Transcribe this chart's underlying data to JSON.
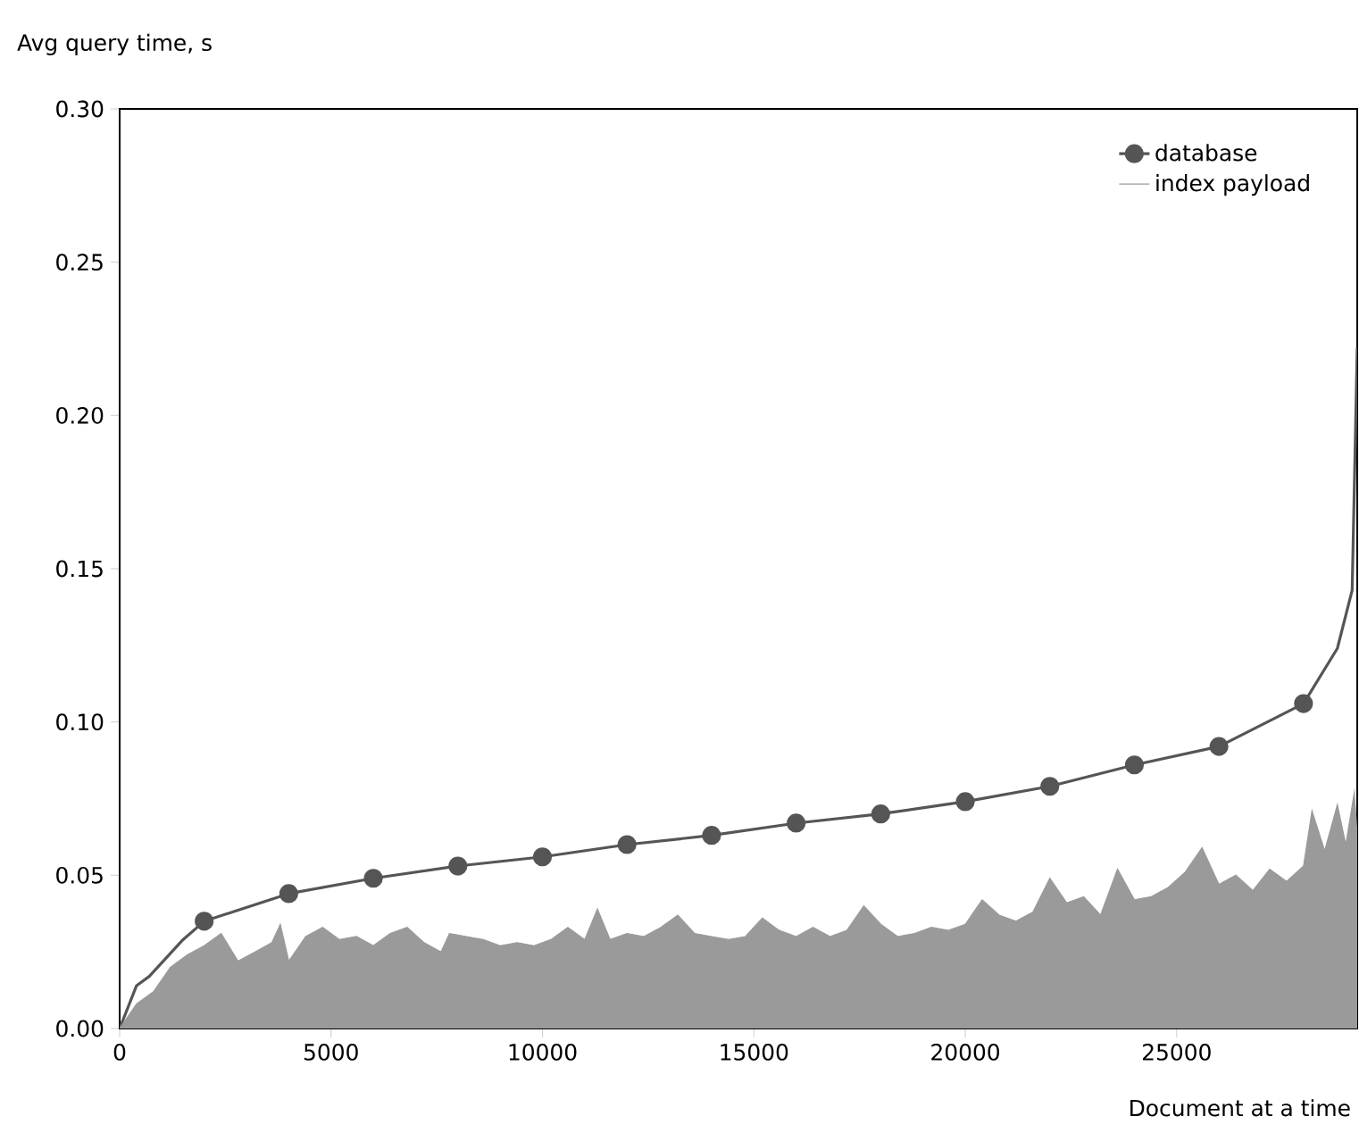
{
  "chart_data": {
    "type": "line",
    "xlabel": "Document at a time",
    "ylabel": "Avg query time, s",
    "xlim": [
      0,
      29270
    ],
    "ylim": [
      0,
      0.3
    ],
    "xticks": [
      0,
      5000,
      10000,
      15000,
      20000,
      25000
    ],
    "yticks": [
      {
        "value": 0,
        "label": "0.00"
      },
      {
        "value": 0.05,
        "label": "0.05"
      },
      {
        "value": 0.1,
        "label": "0.10"
      },
      {
        "value": 0.15,
        "label": "0.15"
      },
      {
        "value": 0.2,
        "label": "0.20"
      },
      {
        "value": 0.25,
        "label": "0.25"
      },
      {
        "value": 0.3,
        "label": "0.30"
      }
    ],
    "grid": false,
    "legend": "top right",
    "series": [
      {
        "name": "database",
        "color": "#555555",
        "marker": "circle",
        "x": [
          2000,
          4000,
          6000,
          8000,
          10000,
          12000,
          14000,
          16000,
          18000,
          20000,
          22000,
          24000,
          26000,
          28000
        ],
        "values": [
          0.035,
          0.044,
          0.049,
          0.053,
          0.056,
          0.06,
          0.063,
          0.067,
          0.07,
          0.074,
          0.079,
          0.086,
          0.092,
          0.106
        ]
      },
      {
        "color": "#555555",
        "marker": "none",
        "x": [
          0,
          400,
          700,
          1500,
          2000
        ],
        "values": [
          0,
          0.014,
          0.017,
          0.029,
          0.035
        ]
      },
      {
        "color": "#555555",
        "marker": "none",
        "x": [
          28000,
          28800,
          29150,
          29270
        ],
        "values": [
          0.106,
          0.124,
          0.143,
          0.222
        ]
      },
      {
        "name": "index payload",
        "type": "area",
        "color": "#9a9a9a",
        "x": [
          0,
          400,
          800,
          1200,
          1600,
          2000,
          2400,
          2800,
          3200,
          3600,
          3800,
          4000,
          4400,
          4800,
          5200,
          5600,
          6000,
          6400,
          6800,
          7200,
          7600,
          7800,
          8200,
          8600,
          9000,
          9400,
          9800,
          10200,
          10600,
          11000,
          11300,
          11600,
          12000,
          12400,
          12800,
          13200,
          13600,
          14000,
          14400,
          14800,
          15200,
          15600,
          16000,
          16400,
          16800,
          17200,
          17600,
          18000,
          18400,
          18800,
          19200,
          19600,
          20000,
          20400,
          20800,
          21200,
          21600,
          22000,
          22400,
          22800,
          23200,
          23600,
          24000,
          24400,
          24800,
          25200,
          25600,
          26000,
          26400,
          26800,
          27200,
          27600,
          28000,
          28200,
          28500,
          28800,
          29000,
          29200,
          29270
        ],
        "values": [
          0,
          0.008,
          0.012,
          0.02,
          0.024,
          0.027,
          0.031,
          0.022,
          0.025,
          0.028,
          0.034,
          0.022,
          0.03,
          0.033,
          0.029,
          0.03,
          0.027,
          0.031,
          0.033,
          0.028,
          0.025,
          0.031,
          0.03,
          0.029,
          0.027,
          0.028,
          0.027,
          0.029,
          0.033,
          0.029,
          0.039,
          0.029,
          0.031,
          0.03,
          0.033,
          0.037,
          0.031,
          0.03,
          0.029,
          0.03,
          0.036,
          0.032,
          0.03,
          0.033,
          0.03,
          0.032,
          0.04,
          0.034,
          0.03,
          0.031,
          0.033,
          0.032,
          0.034,
          0.042,
          0.037,
          0.035,
          0.038,
          0.049,
          0.041,
          0.043,
          0.037,
          0.052,
          0.042,
          0.043,
          0.046,
          0.051,
          0.059,
          0.047,
          0.05,
          0.045,
          0.052,
          0.048,
          0.053,
          0.071,
          0.058,
          0.073,
          0.06,
          0.077,
          0.063
        ]
      }
    ]
  }
}
